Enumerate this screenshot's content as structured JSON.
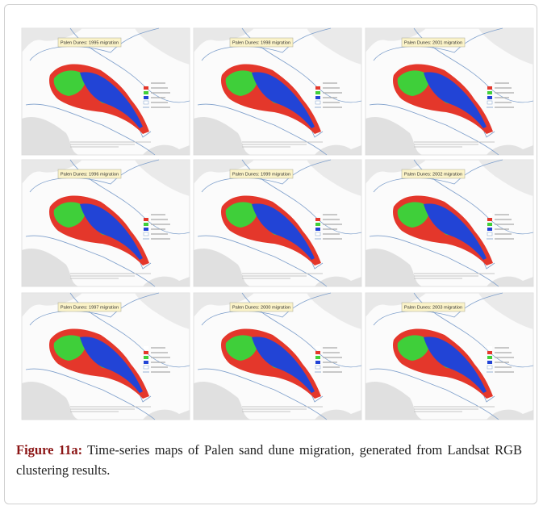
{
  "figure": {
    "panels": [
      {
        "title": "Palen Dunes: 1995 migration"
      },
      {
        "title": "Palen Dunes: 1998 migration"
      },
      {
        "title": "Palen Dunes: 2001 migration"
      },
      {
        "title": "Palen Dunes: 1996 migration"
      },
      {
        "title": "Palen Dunes: 1999 migration"
      },
      {
        "title": "Palen Dunes: 2002 migration"
      },
      {
        "title": "Palen Dunes: 1997 migration"
      },
      {
        "title": "Palen Dunes: 2000 migration"
      },
      {
        "title": "Palen Dunes: 2003 migration"
      }
    ],
    "caption": {
      "label": "Figure 11a:",
      "text": "Time-series maps of Palen sand dune migration, generated from Landsat RGB clustering results."
    }
  }
}
